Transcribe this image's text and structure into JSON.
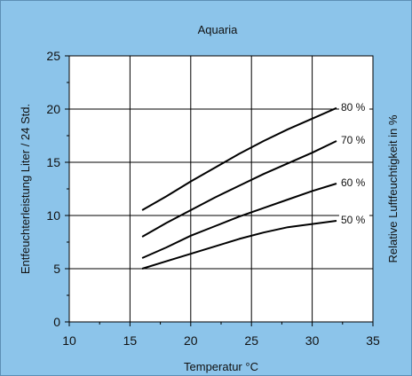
{
  "chart_data": {
    "type": "line",
    "title": "Aquaria",
    "xlabel": "Temperatur °C",
    "ylabel": "Entfeuchterleistung Liter / 24 Std.",
    "ylabel_right": "Relative Luftfeuchtigkeit in %",
    "xlim": [
      10,
      35
    ],
    "ylim": [
      0,
      25
    ],
    "xticks": [
      "10",
      "15",
      "20",
      "25",
      "30",
      "35"
    ],
    "yticks": [
      "0",
      "5",
      "10",
      "15",
      "20",
      "25"
    ],
    "grid": true,
    "series": [
      {
        "name": "80 %",
        "x": [
          16,
          18,
          20,
          22,
          24,
          26,
          28,
          30,
          32
        ],
        "y": [
          10.5,
          11.8,
          13.2,
          14.5,
          15.8,
          17.0,
          18.1,
          19.1,
          20.1
        ]
      },
      {
        "name": "70 %",
        "x": [
          16,
          18,
          20,
          22,
          24,
          26,
          28,
          30,
          32
        ],
        "y": [
          8.0,
          9.3,
          10.5,
          11.7,
          12.8,
          13.9,
          14.9,
          15.9,
          17.0
        ]
      },
      {
        "name": "60 %",
        "x": [
          16,
          18,
          20,
          22,
          24,
          26,
          28,
          30,
          32
        ],
        "y": [
          6.0,
          7.0,
          8.1,
          9.0,
          9.9,
          10.7,
          11.5,
          12.3,
          13.0
        ]
      },
      {
        "name": "50 %",
        "x": [
          16,
          18,
          20,
          22,
          24,
          26,
          28,
          30,
          32
        ],
        "y": [
          5.0,
          5.7,
          6.4,
          7.1,
          7.8,
          8.4,
          8.9,
          9.2,
          9.5
        ]
      }
    ]
  }
}
